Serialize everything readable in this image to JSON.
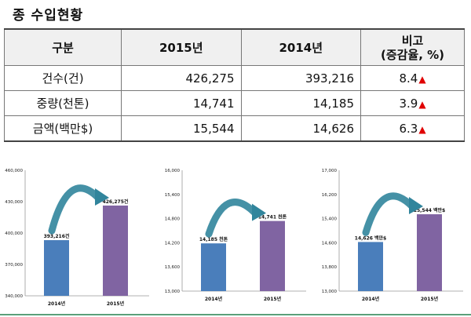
{
  "title": "종 수입현황",
  "table": {
    "headers": [
      "구분",
      "2015년",
      "2014년",
      "비고",
      "(증감율, %)"
    ],
    "rows": [
      {
        "label": "건수(건)",
        "v2015": "426,275",
        "v2014": "393,216",
        "ratio": "8.4"
      },
      {
        "label": "중량(천톤)",
        "v2015": "14,741",
        "v2014": "14,185",
        "ratio": "3.9"
      },
      {
        "label": "금액(백만$)",
        "v2015": "15,544",
        "v2014": "14,626",
        "ratio": "6.3"
      }
    ],
    "up_marker": "▲"
  },
  "colors": {
    "bar_2014": "#4a7ebb",
    "bar_2015": "#8064a2",
    "arrow": "#31859c",
    "increase": "#e00000"
  },
  "chart_data": [
    {
      "type": "bar",
      "categories": [
        "2014년",
        "2015년"
      ],
      "values": [
        393216,
        426275
      ],
      "data_labels": [
        "393,216건",
        "426,275건"
      ],
      "ylim": [
        340000,
        460000
      ],
      "yticks": [
        "340,000",
        "370,000",
        "400,000",
        "430,000",
        "460,000"
      ],
      "tick_values": [
        340000,
        370000,
        400000,
        430000,
        460000
      ]
    },
    {
      "type": "bar",
      "categories": [
        "2014년",
        "2015년"
      ],
      "values": [
        14185,
        14741
      ],
      "data_labels": [
        "14,185 천톤",
        "14,741 천톤"
      ],
      "ylim": [
        13000,
        16000
      ],
      "yticks": [
        "13,000",
        "13,600",
        "14,200",
        "14,800",
        "15,400",
        "16,000"
      ],
      "tick_values": [
        13000,
        13600,
        14200,
        14800,
        15400,
        16000
      ]
    },
    {
      "type": "bar",
      "categories": [
        "2014년",
        "2015년"
      ],
      "values": [
        14626,
        15544
      ],
      "data_labels": [
        "14,626 백만$",
        "15,544 백만$"
      ],
      "ylim": [
        13000,
        17000
      ],
      "yticks": [
        "13,000",
        "13,800",
        "14,600",
        "15,400",
        "16,200",
        "17,000"
      ],
      "tick_values": [
        13000,
        13800,
        14600,
        15400,
        16200,
        17000
      ]
    }
  ]
}
